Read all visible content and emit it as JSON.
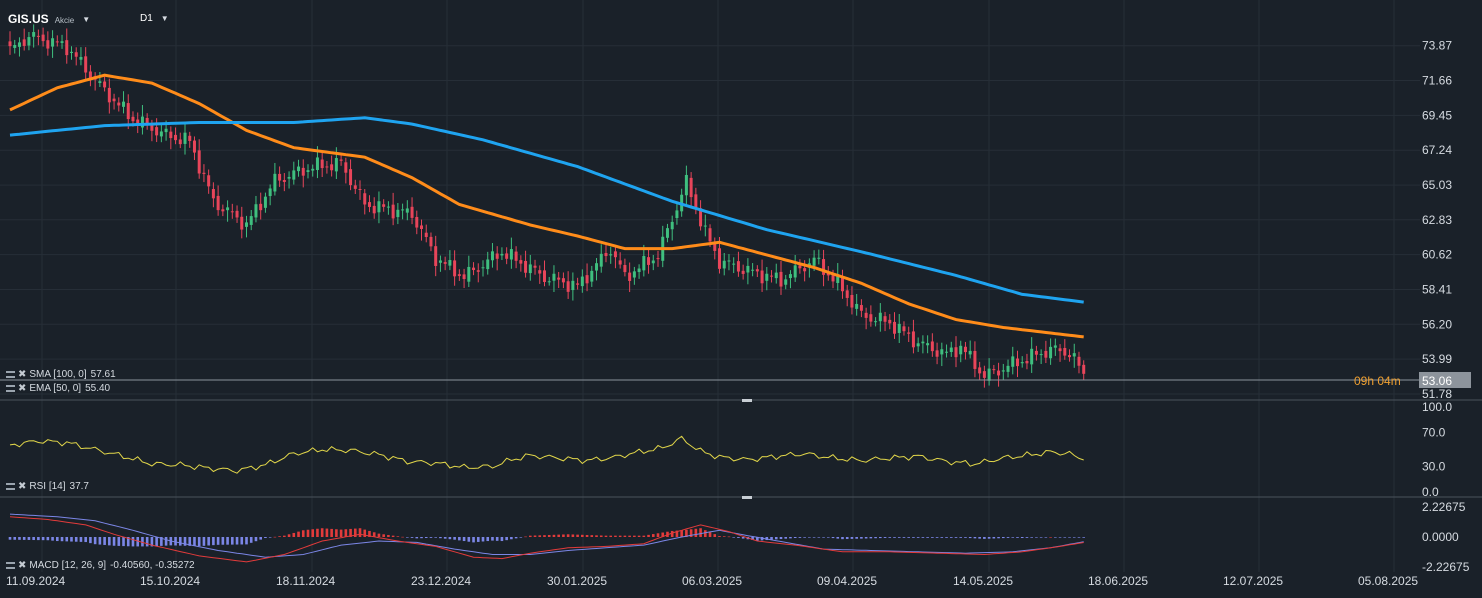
{
  "header": {
    "symbol": "GIS.US",
    "asset_type": "Akcie",
    "timeframe": "D1",
    "caret_icon": "caret-down-icon"
  },
  "indicators": {
    "sma": {
      "name": "SMA [100, 0]",
      "value": "57.61",
      "color": "#1fa4f0"
    },
    "ema": {
      "name": "EMA [50, 0]",
      "value": "55.40",
      "color": "#ff8c1a"
    },
    "rsi": {
      "name": "RSI [14]",
      "value": "37.7",
      "color": "#e2d74a"
    },
    "macd": {
      "name": "MACD [12, 26, 9]",
      "value": "-0.40560,  -0.35272",
      "colors": {
        "macd": "#e23b3b",
        "signal": "#7b86e6"
      }
    }
  },
  "price_badge": {
    "countdown": "09h 04m",
    "value": "53.06"
  },
  "colors": {
    "up": "#3fbf7f",
    "down": "#e8455a",
    "hist_up": "#e23b3b",
    "hist_down": "#7b86e6"
  },
  "chart_data": {
    "type": "candlestick",
    "x_axis": {
      "labels": [
        "11.09.2024",
        "15.10.2024",
        "18.11.2024",
        "23.12.2024",
        "30.01.2025",
        "06.03.2025",
        "09.04.2025",
        "14.05.2025",
        "18.06.2025",
        "12.07.2025",
        "05.08.2025"
      ]
    },
    "price_axis": {
      "range": [
        51.78,
        75.5
      ],
      "ticks": [
        "73.87",
        "71.66",
        "69.45",
        "67.24",
        "65.03",
        "62.83",
        "60.62",
        "58.41",
        "56.20",
        "53.99",
        "51.78"
      ]
    },
    "rsi_axis": {
      "range": [
        0,
        100
      ],
      "ticks": [
        "100.0",
        "70.0",
        "30.0",
        "0.0"
      ]
    },
    "macd_axis": {
      "range": [
        -2.22675,
        2.22675
      ],
      "ticks": [
        "2.22675",
        "0.0000",
        "-2.22675"
      ]
    },
    "close_anchors": [
      [
        0,
        73.5
      ],
      [
        4,
        74.5
      ],
      [
        12,
        73.8
      ],
      [
        20,
        71.0
      ],
      [
        26,
        69.2
      ],
      [
        33,
        68.2
      ],
      [
        38,
        67.8
      ],
      [
        43,
        64.0
      ],
      [
        50,
        62.5
      ],
      [
        56,
        65.3
      ],
      [
        64,
        66.2
      ],
      [
        70,
        66.4
      ],
      [
        75,
        63.8
      ],
      [
        85,
        63.2
      ],
      [
        90,
        60.4
      ],
      [
        96,
        59.2
      ],
      [
        104,
        60.8
      ],
      [
        113,
        59.2
      ],
      [
        120,
        58.6
      ],
      [
        127,
        61.0
      ],
      [
        130,
        59.2
      ],
      [
        137,
        60.6
      ],
      [
        143,
        65.2
      ],
      [
        147,
        62.0
      ],
      [
        150,
        60.2
      ],
      [
        156,
        59.6
      ],
      [
        163,
        59.0
      ],
      [
        170,
        60.3
      ],
      [
        175,
        58.8
      ],
      [
        180,
        56.8
      ],
      [
        186,
        56.3
      ],
      [
        192,
        55.0
      ],
      [
        198,
        54.3
      ],
      [
        201,
        54.8
      ],
      [
        206,
        52.9
      ],
      [
        213,
        53.8
      ],
      [
        220,
        54.6
      ],
      [
        224,
        54.4
      ],
      [
        227,
        53.06
      ]
    ],
    "sma_100": [
      [
        0,
        68.2
      ],
      [
        20,
        68.8
      ],
      [
        40,
        69.0
      ],
      [
        60,
        69.0
      ],
      [
        75,
        69.3
      ],
      [
        85,
        68.9
      ],
      [
        100,
        67.9
      ],
      [
        120,
        66.2
      ],
      [
        140,
        64.0
      ],
      [
        160,
        62.2
      ],
      [
        180,
        60.8
      ],
      [
        200,
        59.3
      ],
      [
        214,
        58.1
      ],
      [
        227,
        57.61
      ]
    ],
    "ema_50": [
      [
        0,
        69.8
      ],
      [
        10,
        71.2
      ],
      [
        20,
        72.0
      ],
      [
        30,
        71.5
      ],
      [
        40,
        70.2
      ],
      [
        50,
        68.5
      ],
      [
        60,
        67.4
      ],
      [
        75,
        66.8
      ],
      [
        85,
        65.5
      ],
      [
        95,
        63.8
      ],
      [
        110,
        62.5
      ],
      [
        120,
        61.8
      ],
      [
        130,
        61.0
      ],
      [
        140,
        61.0
      ],
      [
        150,
        61.4
      ],
      [
        160,
        60.6
      ],
      [
        170,
        59.8
      ],
      [
        180,
        58.8
      ],
      [
        190,
        57.5
      ],
      [
        200,
        56.5
      ],
      [
        210,
        56.0
      ],
      [
        227,
        55.4
      ]
    ],
    "rsi_anchors": [
      [
        0,
        55
      ],
      [
        6,
        60
      ],
      [
        12,
        58
      ],
      [
        18,
        50
      ],
      [
        24,
        42
      ],
      [
        30,
        33
      ],
      [
        36,
        32
      ],
      [
        42,
        28
      ],
      [
        48,
        25
      ],
      [
        54,
        32
      ],
      [
        60,
        45
      ],
      [
        66,
        50
      ],
      [
        72,
        49
      ],
      [
        78,
        44
      ],
      [
        84,
        36
      ],
      [
        90,
        34
      ],
      [
        96,
        29
      ],
      [
        102,
        30
      ],
      [
        106,
        38
      ],
      [
        110,
        43
      ],
      [
        116,
        40
      ],
      [
        122,
        37
      ],
      [
        128,
        41
      ],
      [
        132,
        46
      ],
      [
        138,
        52
      ],
      [
        142,
        63
      ],
      [
        146,
        48
      ],
      [
        150,
        41
      ],
      [
        156,
        38
      ],
      [
        162,
        42
      ],
      [
        168,
        45
      ],
      [
        174,
        40
      ],
      [
        180,
        37
      ],
      [
        186,
        40
      ],
      [
        192,
        42
      ],
      [
        198,
        36
      ],
      [
        204,
        33
      ],
      [
        210,
        40
      ],
      [
        216,
        44
      ],
      [
        220,
        47
      ],
      [
        224,
        45
      ],
      [
        227,
        37.7
      ]
    ],
    "macd_anchors": [
      [
        0,
        1.5
      ],
      [
        8,
        1.3
      ],
      [
        16,
        0.9
      ],
      [
        22,
        0.2
      ],
      [
        30,
        -0.6
      ],
      [
        40,
        -1.4
      ],
      [
        50,
        -1.85
      ],
      [
        58,
        -1.3
      ],
      [
        66,
        -0.3
      ],
      [
        74,
        0.2
      ],
      [
        82,
        -0.3
      ],
      [
        90,
        -0.7
      ],
      [
        98,
        -1.5
      ],
      [
        104,
        -1.6
      ],
      [
        110,
        -1.2
      ],
      [
        118,
        -0.8
      ],
      [
        126,
        -0.7
      ],
      [
        134,
        -0.5
      ],
      [
        140,
        0.3
      ],
      [
        146,
        0.9
      ],
      [
        152,
        0.4
      ],
      [
        158,
        -0.3
      ],
      [
        166,
        -0.6
      ],
      [
        176,
        -1.1
      ],
      [
        186,
        -1.1
      ],
      [
        196,
        -1.2
      ],
      [
        206,
        -1.3
      ],
      [
        214,
        -1.1
      ],
      [
        222,
        -0.7
      ],
      [
        227,
        -0.4056
      ]
    ],
    "signal_anchors": [
      [
        0,
        1.7
      ],
      [
        10,
        1.5
      ],
      [
        18,
        1.2
      ],
      [
        26,
        0.5
      ],
      [
        34,
        -0.3
      ],
      [
        44,
        -1.0
      ],
      [
        54,
        -1.5
      ],
      [
        62,
        -1.3
      ],
      [
        70,
        -0.6
      ],
      [
        78,
        -0.3
      ],
      [
        86,
        -0.4
      ],
      [
        94,
        -0.9
      ],
      [
        102,
        -1.3
      ],
      [
        110,
        -1.3
      ],
      [
        118,
        -1.0
      ],
      [
        126,
        -0.8
      ],
      [
        134,
        -0.6
      ],
      [
        142,
        0.0
      ],
      [
        150,
        0.5
      ],
      [
        156,
        0.1
      ],
      [
        164,
        -0.4
      ],
      [
        172,
        -0.9
      ],
      [
        182,
        -1.0
      ],
      [
        192,
        -1.1
      ],
      [
        202,
        -1.2
      ],
      [
        212,
        -1.1
      ],
      [
        220,
        -0.8
      ],
      [
        227,
        -0.35272
      ]
    ]
  }
}
